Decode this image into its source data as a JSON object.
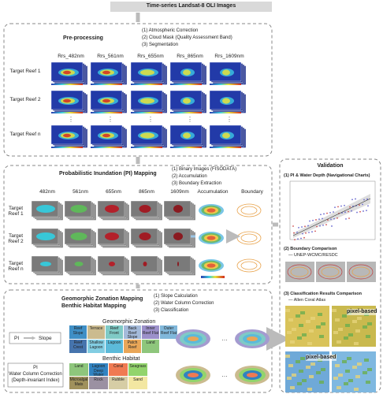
{
  "header": {
    "title": "Time-series Landsat-8 OLI Images"
  },
  "preprocessing": {
    "title": "Pre-processing",
    "steps": [
      "(1) Atmospheric Correction",
      "(2) Cloud Mask (Quality Assessment Band)",
      "(3) Segmentation"
    ],
    "bands": [
      "Rrs_482nm",
      "Rrs_561nm",
      "Rrs_655nm",
      "Rrs_865nm",
      "Rrs_1609nm"
    ],
    "rows": [
      "Target Reef 1",
      "Target Reef 2",
      "Target Reef n"
    ]
  },
  "pi_mapping": {
    "title": "Probabilistic Inundation (PI) Mapping",
    "steps": [
      "(1) Binary Images (FISODATA)",
      "(2) Accumulation",
      "(3) Boundary Extraction"
    ],
    "columns": [
      "482nm",
      "561nm",
      "655nm",
      "865nm",
      "1609nm",
      "Accumulation",
      "Boundary"
    ],
    "rows": [
      "Target Reef 1",
      "Target Reef 2",
      "Target Reef n"
    ]
  },
  "classification": {
    "titles": [
      "Geomorphic Zonation Mapping",
      "Benthic Habitat Mapping"
    ],
    "steps": [
      "(1) Slope Calculation",
      "(2) Water Column Correction",
      "(3) Classification"
    ],
    "geomorphic": {
      "title": "Geomorphic Zonation",
      "input": "PI",
      "output": "Slope",
      "classes": [
        {
          "label": "Reef Slope",
          "color": "#3f8fc6"
        },
        {
          "label": "Terrace",
          "color": "#cbbb8f"
        },
        {
          "label": "Reef Front",
          "color": "#7fcac6"
        },
        {
          "label": "Back Reef Slope",
          "color": "#a4bada"
        },
        {
          "label": "Inner Reef Flat",
          "color": "#9c90ca"
        },
        {
          "label": "Outer Reef Flat",
          "color": "#80b7da"
        },
        {
          "label": "Reef Crest",
          "color": "#4674ad"
        },
        {
          "label": "Shallow Lagoon",
          "color": "#82cde2"
        },
        {
          "label": "Lagoon",
          "color": "#5cbad9"
        },
        {
          "label": "Patch Reef",
          "color": "#e9a658"
        },
        {
          "label": "Land",
          "color": "#8ec67c"
        }
      ]
    },
    "benthic": {
      "title": "Benthic Habitat",
      "input_lines": [
        "PI",
        "Water Column Correction",
        "(Depth-invariant Index)"
      ],
      "classes": [
        {
          "label": "Land",
          "color": "#8ec67c"
        },
        {
          "label": "Lagoon Deep Water",
          "color": "#3182c0"
        },
        {
          "label": "Coral",
          "color": "#f07a52"
        },
        {
          "label": "Seagrass",
          "color": "#92d46c"
        },
        {
          "label": "Microalgal Mats",
          "color": "#a0915c"
        },
        {
          "label": "Rock",
          "color": "#9b91a2"
        },
        {
          "label": "Rubble",
          "color": "#d6cda5"
        },
        {
          "label": "Sand",
          "color": "#f3e7a2"
        }
      ]
    }
  },
  "validation": {
    "title": "Validation",
    "items": [
      {
        "title": "(1) PI & Water Depth (Navigational Charts)"
      },
      {
        "title": "(2) Boundary Comparison",
        "subtitle": "— UNEP-WCMC/RESDC"
      },
      {
        "title": "(3) Classification Results Comparison",
        "subtitle": "— Allen Coral Atlas"
      }
    ],
    "panel_labels": [
      "pixel-based",
      "pixel-based"
    ]
  }
}
